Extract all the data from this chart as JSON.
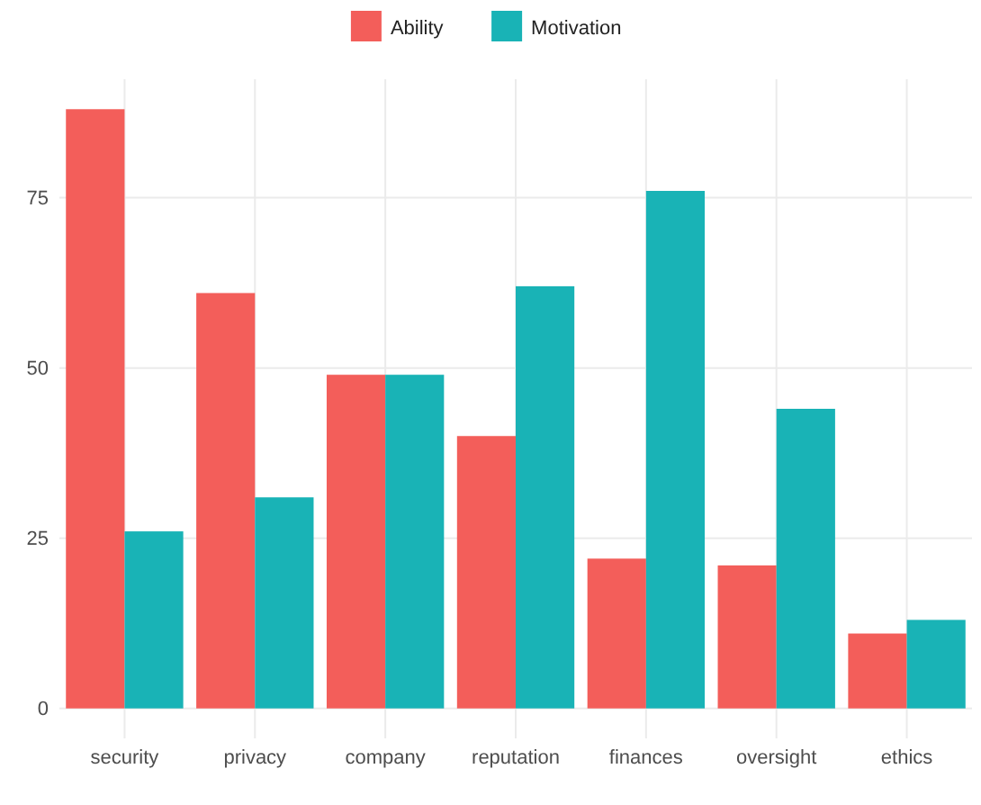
{
  "chart_data": {
    "type": "bar",
    "categories": [
      "security",
      "privacy",
      "company",
      "reputation",
      "finances",
      "oversight",
      "ethics"
    ],
    "series": [
      {
        "name": "Ability",
        "color": "#f35e5a",
        "values": [
          88,
          61,
          49,
          40,
          22,
          21,
          11
        ]
      },
      {
        "name": "Motivation",
        "color": "#19b3b6",
        "values": [
          26,
          31,
          49,
          62,
          76,
          44,
          13
        ]
      }
    ],
    "ylim": [
      -4.4,
      92.4
    ],
    "yticks": [
      0,
      25,
      50,
      75
    ],
    "grid": true,
    "legend": "top"
  }
}
